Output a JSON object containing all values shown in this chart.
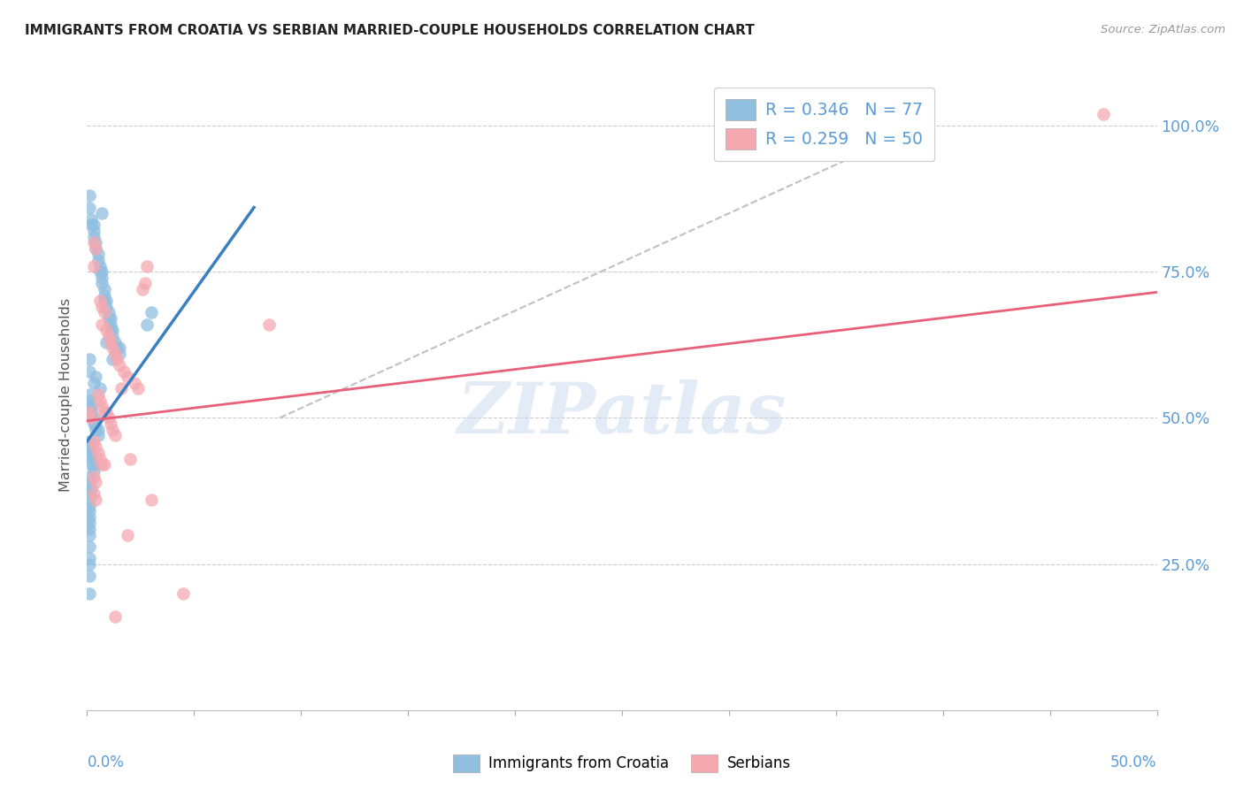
{
  "title": "IMMIGRANTS FROM CROATIA VS SERBIAN MARRIED-COUPLE HOUSEHOLDS CORRELATION CHART",
  "source": "Source: ZipAtlas.com",
  "ylabel": "Married-couple Households",
  "yticks": [
    0.0,
    0.25,
    0.5,
    0.75,
    1.0
  ],
  "ytick_labels": [
    "",
    "25.0%",
    "50.0%",
    "75.0%",
    "100.0%"
  ],
  "xmin": 0.0,
  "xmax": 0.5,
  "ymin": 0.0,
  "ymax": 1.08,
  "watermark_text": "ZIPatlas",
  "blue_color": "#90bfe0",
  "pink_color": "#f5a8b0",
  "blue_line_color": "#3a7fc1",
  "pink_line_color": "#e8607a",
  "gray_dash_color": "#c0c0c0",
  "right_tick_color": "#5b9bd5",
  "legend_blue_label": "R = 0.346   N = 77",
  "legend_pink_label": "R = 0.259   N = 50",
  "bottom_legend_labels": [
    "Immigrants from Croatia",
    "Serbians"
  ],
  "blue_scatter": [
    [
      0.001,
      0.88
    ],
    [
      0.001,
      0.86
    ],
    [
      0.002,
      0.84
    ],
    [
      0.002,
      0.83
    ],
    [
      0.003,
      0.83
    ],
    [
      0.003,
      0.82
    ],
    [
      0.003,
      0.81
    ],
    [
      0.004,
      0.8
    ],
    [
      0.004,
      0.79
    ],
    [
      0.005,
      0.78
    ],
    [
      0.005,
      0.77
    ],
    [
      0.006,
      0.76
    ],
    [
      0.006,
      0.75
    ],
    [
      0.007,
      0.75
    ],
    [
      0.007,
      0.74
    ],
    [
      0.007,
      0.73
    ],
    [
      0.008,
      0.72
    ],
    [
      0.008,
      0.71
    ],
    [
      0.008,
      0.7
    ],
    [
      0.009,
      0.7
    ],
    [
      0.009,
      0.69
    ],
    [
      0.01,
      0.68
    ],
    [
      0.01,
      0.67
    ],
    [
      0.011,
      0.67
    ],
    [
      0.011,
      0.66
    ],
    [
      0.011,
      0.65
    ],
    [
      0.012,
      0.65
    ],
    [
      0.012,
      0.64
    ],
    [
      0.013,
      0.63
    ],
    [
      0.013,
      0.62
    ],
    [
      0.014,
      0.62
    ],
    [
      0.015,
      0.61
    ],
    [
      0.001,
      0.54
    ],
    [
      0.001,
      0.53
    ],
    [
      0.001,
      0.52
    ],
    [
      0.002,
      0.52
    ],
    [
      0.002,
      0.51
    ],
    [
      0.002,
      0.5
    ],
    [
      0.003,
      0.5
    ],
    [
      0.003,
      0.49
    ],
    [
      0.004,
      0.49
    ],
    [
      0.004,
      0.48
    ],
    [
      0.005,
      0.48
    ],
    [
      0.005,
      0.47
    ],
    [
      0.001,
      0.46
    ],
    [
      0.001,
      0.45
    ],
    [
      0.001,
      0.44
    ],
    [
      0.002,
      0.44
    ],
    [
      0.002,
      0.43
    ],
    [
      0.002,
      0.42
    ],
    [
      0.003,
      0.42
    ],
    [
      0.003,
      0.41
    ],
    [
      0.001,
      0.4
    ],
    [
      0.001,
      0.39
    ],
    [
      0.002,
      0.38
    ],
    [
      0.001,
      0.37
    ],
    [
      0.001,
      0.36
    ],
    [
      0.001,
      0.35
    ],
    [
      0.001,
      0.34
    ],
    [
      0.001,
      0.33
    ],
    [
      0.001,
      0.32
    ],
    [
      0.001,
      0.31
    ],
    [
      0.001,
      0.3
    ],
    [
      0.001,
      0.28
    ],
    [
      0.001,
      0.26
    ],
    [
      0.001,
      0.25
    ],
    [
      0.001,
      0.23
    ],
    [
      0.03,
      0.68
    ],
    [
      0.028,
      0.66
    ],
    [
      0.007,
      0.85
    ],
    [
      0.001,
      0.2
    ],
    [
      0.001,
      0.6
    ],
    [
      0.001,
      0.58
    ],
    [
      0.006,
      0.55
    ],
    [
      0.004,
      0.57
    ],
    [
      0.003,
      0.56
    ],
    [
      0.009,
      0.63
    ],
    [
      0.015,
      0.62
    ],
    [
      0.012,
      0.6
    ]
  ],
  "pink_scatter": [
    [
      0.003,
      0.8
    ],
    [
      0.004,
      0.79
    ],
    [
      0.003,
      0.76
    ],
    [
      0.028,
      0.76
    ],
    [
      0.027,
      0.73
    ],
    [
      0.026,
      0.72
    ],
    [
      0.006,
      0.7
    ],
    [
      0.007,
      0.69
    ],
    [
      0.008,
      0.68
    ],
    [
      0.007,
      0.66
    ],
    [
      0.009,
      0.65
    ],
    [
      0.01,
      0.64
    ],
    [
      0.011,
      0.63
    ],
    [
      0.012,
      0.62
    ],
    [
      0.013,
      0.61
    ],
    [
      0.014,
      0.6
    ],
    [
      0.015,
      0.59
    ],
    [
      0.017,
      0.58
    ],
    [
      0.019,
      0.57
    ],
    [
      0.022,
      0.56
    ],
    [
      0.024,
      0.55
    ],
    [
      0.005,
      0.54
    ],
    [
      0.006,
      0.53
    ],
    [
      0.007,
      0.52
    ],
    [
      0.008,
      0.51
    ],
    [
      0.009,
      0.51
    ],
    [
      0.01,
      0.5
    ],
    [
      0.011,
      0.49
    ],
    [
      0.012,
      0.48
    ],
    [
      0.013,
      0.47
    ],
    [
      0.003,
      0.46
    ],
    [
      0.004,
      0.45
    ],
    [
      0.005,
      0.44
    ],
    [
      0.006,
      0.43
    ],
    [
      0.007,
      0.42
    ],
    [
      0.008,
      0.42
    ],
    [
      0.003,
      0.4
    ],
    [
      0.004,
      0.39
    ],
    [
      0.02,
      0.43
    ],
    [
      0.03,
      0.36
    ],
    [
      0.019,
      0.3
    ],
    [
      0.045,
      0.2
    ],
    [
      0.013,
      0.16
    ],
    [
      0.085,
      0.66
    ],
    [
      0.475,
      1.02
    ],
    [
      0.003,
      0.37
    ],
    [
      0.004,
      0.36
    ],
    [
      0.002,
      0.5
    ],
    [
      0.001,
      0.51
    ],
    [
      0.016,
      0.55
    ]
  ],
  "blue_trend_x": [
    0.0,
    0.078
  ],
  "blue_trend_y": [
    0.46,
    0.86
  ],
  "pink_trend_x": [
    0.0,
    0.5
  ],
  "pink_trend_y": [
    0.495,
    0.715
  ],
  "gray_trend_x": [
    0.09,
    0.36
  ],
  "gray_trend_y": [
    0.5,
    0.95
  ]
}
